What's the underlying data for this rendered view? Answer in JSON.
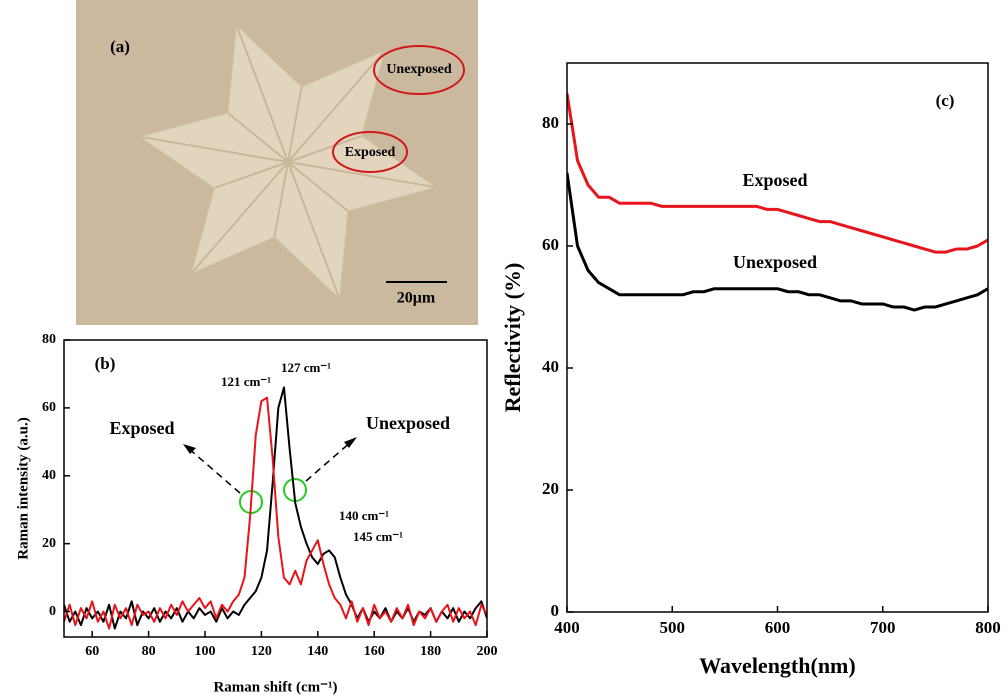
{
  "micrograph": {
    "label": "(a)",
    "annotations": [
      "Unexposed",
      "Exposed"
    ],
    "scale_bar": "20μm"
  },
  "chart_data": [
    {
      "type": "line",
      "panel": "(b)",
      "x_label": "Raman shift (cm⁻¹)",
      "y_label": "Raman intensity (a.u.)",
      "annotations": [
        "121 cm⁻¹",
        "127 cm⁻¹",
        "140 cm⁻¹",
        "145 cm⁻¹",
        "Exposed",
        "Unexposed"
      ],
      "x": [
        50,
        52,
        54,
        56,
        58,
        60,
        62,
        64,
        66,
        68,
        70,
        72,
        74,
        76,
        78,
        80,
        82,
        84,
        86,
        88,
        90,
        92,
        94,
        96,
        98,
        100,
        102,
        104,
        106,
        108,
        110,
        112,
        114,
        116,
        118,
        120,
        122,
        124,
        126,
        128,
        130,
        132,
        134,
        136,
        138,
        140,
        142,
        144,
        146,
        148,
        150,
        152,
        154,
        156,
        158,
        160,
        162,
        164,
        166,
        168,
        170,
        172,
        174,
        176,
        178,
        180,
        182,
        184,
        186,
        188,
        190,
        192,
        194,
        196,
        198,
        200
      ],
      "series": [
        {
          "color": "#000000",
          "values": [
            2,
            -3,
            0,
            -4,
            1,
            -2,
            0,
            -3,
            2,
            -5,
            0,
            -2,
            3,
            -4,
            0,
            -2,
            1,
            -3,
            0,
            -2,
            1,
            -3,
            0,
            -2,
            1,
            -1,
            0,
            -3,
            1,
            -2,
            0,
            -1,
            2,
            4,
            6,
            10,
            18,
            38,
            60,
            66,
            48,
            32,
            25,
            20,
            16,
            14,
            17,
            18,
            16,
            10,
            5,
            2,
            -2,
            1,
            -3,
            0,
            -2,
            1,
            -3,
            0,
            -2,
            1,
            -3,
            0,
            -1,
            1,
            -3,
            0,
            -2,
            1,
            -3,
            0,
            -2,
            1,
            3,
            -2
          ]
        },
        {
          "color": "#e8141b",
          "values": [
            -3,
            2,
            -4,
            1,
            -2,
            3,
            -3,
            0,
            -5,
            2,
            -2,
            1,
            -4,
            2,
            -1,
            0,
            -3,
            1,
            -2,
            2,
            -1,
            3,
            0,
            2,
            4,
            1,
            3,
            -2,
            2,
            0,
            3,
            5,
            10,
            28,
            52,
            62,
            63,
            45,
            22,
            10,
            8,
            12,
            8,
            15,
            18,
            21,
            14,
            8,
            4,
            2,
            -2,
            3,
            -3,
            1,
            -4,
            2,
            -2,
            0,
            -3,
            1,
            -2,
            2,
            -4,
            0,
            -2,
            1,
            -3,
            0,
            2,
            -3,
            1,
            -2,
            0,
            -4,
            2,
            -1
          ]
        }
      ],
      "xlim": [
        50,
        200
      ],
      "ylim": [
        -7.5,
        80
      ],
      "xticks": [
        60,
        80,
        100,
        120,
        140,
        160,
        180,
        200
      ],
      "yticks": [
        0,
        20,
        40,
        60,
        80
      ]
    },
    {
      "type": "line",
      "panel": "(c)",
      "x_label": "Wavelength(nm)",
      "y_label": "Reflectivity (%)",
      "annotations": [
        "Exposed",
        "Unexposed"
      ],
      "x": [
        400,
        410,
        420,
        430,
        440,
        450,
        460,
        470,
        480,
        490,
        500,
        510,
        520,
        530,
        540,
        550,
        560,
        570,
        580,
        590,
        600,
        610,
        620,
        630,
        640,
        650,
        660,
        670,
        680,
        690,
        700,
        710,
        720,
        730,
        740,
        750,
        760,
        770,
        780,
        790,
        800
      ],
      "series": [
        {
          "color": "#e8141b",
          "values": [
            85,
            74,
            70,
            68,
            68,
            67,
            67,
            67,
            67,
            66.5,
            66.5,
            66.5,
            66.5,
            66.5,
            66.5,
            66.5,
            66.5,
            66.5,
            66.5,
            66,
            66,
            65.5,
            65,
            64.5,
            64,
            64,
            63.5,
            63,
            62.5,
            62,
            61.5,
            61,
            60.5,
            60,
            59.5,
            59,
            59,
            59.5,
            59.5,
            60,
            61
          ]
        },
        {
          "color": "#000000",
          "values": [
            72,
            60,
            56,
            54,
            53,
            52,
            52,
            52,
            52,
            52,
            52,
            52,
            52.5,
            52.5,
            53,
            53,
            53,
            53,
            53,
            53,
            53,
            52.5,
            52.5,
            52,
            52,
            51.5,
            51,
            51,
            50.5,
            50.5,
            50.5,
            50,
            50,
            49.5,
            50,
            50,
            50.5,
            51,
            51.5,
            52,
            53
          ]
        }
      ],
      "xlim": [
        400,
        800
      ],
      "ylim": [
        0,
        90
      ],
      "xticks": [
        400,
        500,
        600,
        700,
        800
      ],
      "yticks": [
        0,
        20,
        40,
        60,
        80
      ]
    }
  ]
}
